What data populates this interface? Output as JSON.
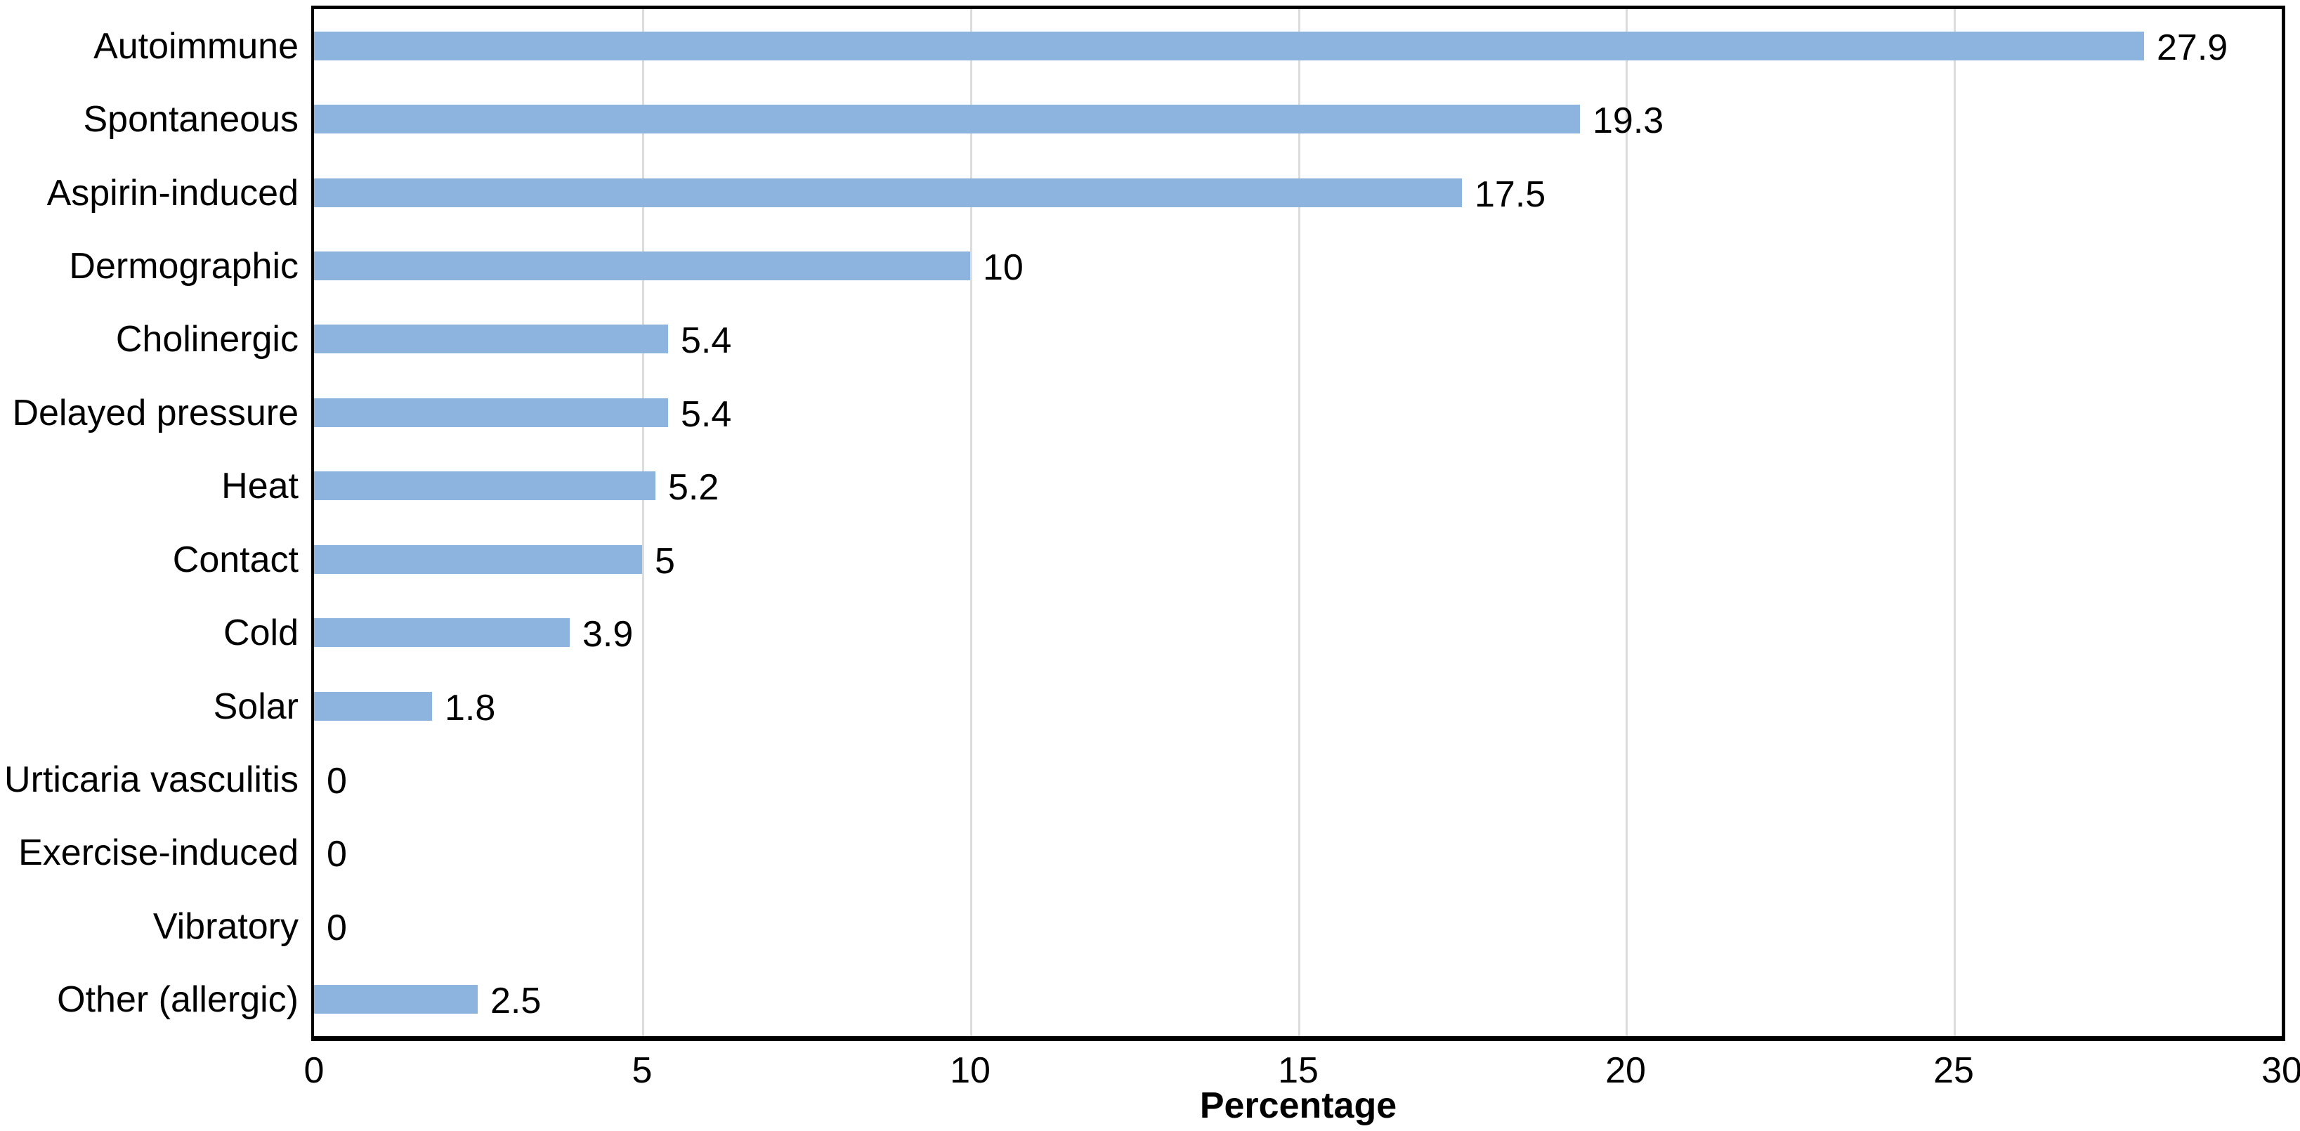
{
  "figure": {
    "background": "#FFFFFF"
  },
  "chart_data": {
    "type": "bar",
    "orientation": "horizontal",
    "title": "",
    "categories": [
      "Autoimmune",
      "Spontaneous",
      "Aspirin-induced",
      "Dermographic",
      "Cholinergic",
      "Delayed pressure",
      "Heat",
      "Contact",
      "Cold",
      "Solar",
      "Urticaria vasculitis",
      "Exercise-induced",
      "Vibratory",
      "Other (allergic)"
    ],
    "values": [
      27.9,
      19.3,
      17.5,
      10,
      5.4,
      5.4,
      5.2,
      5,
      3.9,
      1.8,
      0,
      0,
      0,
      2.5
    ],
    "value_labels": [
      "27.9",
      "19.3",
      "17.5",
      "10",
      "5.4",
      "5.4",
      "5.2",
      "5",
      "3.9",
      "1.8",
      "0",
      "0",
      "0",
      "2.5"
    ],
    "xlabel": "Percentage",
    "ylabel": "",
    "xlim": [
      0,
      30
    ],
    "xticks": [
      0,
      5,
      10,
      15,
      20,
      25,
      30
    ],
    "xtick_labels": [
      "0",
      "5",
      "10",
      "15",
      "20",
      "25",
      "30"
    ],
    "grid": "vertical-at-xticks",
    "legend": "none",
    "bar_color": "#8CB4DE",
    "gridline_color": "#DCDCDC",
    "axis_color": "#000000",
    "text_color": "#000000"
  }
}
